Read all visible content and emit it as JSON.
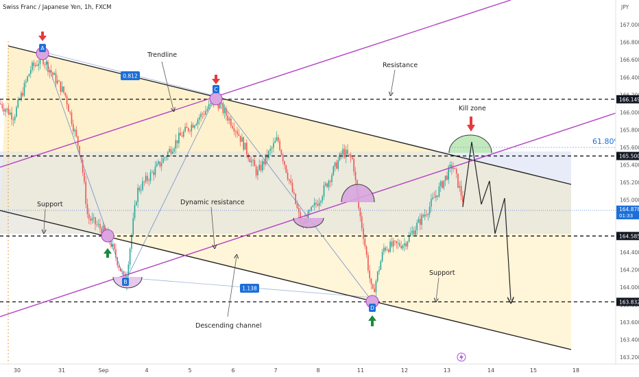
{
  "header": {
    "title": "Swiss Franc / Japanese Yen, 1h, FXCM"
  },
  "chart_data": {
    "type": "candlestick",
    "title": "Swiss Franc / Japanese Yen, 1h, FXCM",
    "currency": "JPY",
    "ylim": [
      163.2,
      167.08
    ],
    "y_ticks": [
      "167.000",
      "166.800",
      "166.600",
      "166.400",
      "166.200",
      "166.000",
      "165.800",
      "165.600",
      "165.400",
      "165.200",
      "165.000",
      "164.800",
      "164.600",
      "164.400",
      "164.200",
      "164.000",
      "163.800",
      "163.600",
      "163.400",
      "163.200"
    ],
    "x_ticks": [
      "30",
      "31",
      "Sep",
      "4",
      "5",
      "6",
      "7",
      "8",
      "11",
      "12",
      "13",
      "14",
      "15",
      "18"
    ],
    "price_levels": [
      {
        "label": "166.149",
        "value": 166.149,
        "style": "dashed"
      },
      {
        "label": "165.500",
        "value": 165.5,
        "style": "dashed"
      },
      {
        "label": "164.585",
        "value": 164.585,
        "style": "dashed"
      },
      {
        "label": "163.832",
        "value": 163.832,
        "style": "dashed"
      }
    ],
    "current_price": {
      "label": "164.878",
      "countdown": "01:33",
      "value": 164.878
    },
    "annotations": {
      "trendline": "Trendline",
      "resistance": "Resistance",
      "kill_zone": "Kill zone",
      "support_left": "Support",
      "dynamic_resistance": "Dynamic resistance",
      "descending_channel": "Descending channel",
      "support_right": "Support",
      "fib_level": "61.80%",
      "ratio_1": "0.812",
      "ratio_2": "1.138"
    },
    "swing_points": [
      {
        "label": "A",
        "x": "Aug 30",
        "y": 166.62
      },
      {
        "label": "B",
        "x": "Sep 3",
        "y": 164.05
      },
      {
        "label": "C",
        "x": "Sep 5",
        "y": 166.14
      },
      {
        "label": "D",
        "x": "Sep 11",
        "y": 163.82
      }
    ],
    "colors": {
      "channel_fill": "#fff3d1",
      "zone_fill": "#dfe6f5",
      "purple_line": "#b43fc4",
      "green_arrow": "#1b8a3c",
      "red_arrow": "#e8393a",
      "price_badge": "#1d6fd8",
      "candle_up": "#26a69a",
      "candle_down": "#ef5350"
    }
  }
}
